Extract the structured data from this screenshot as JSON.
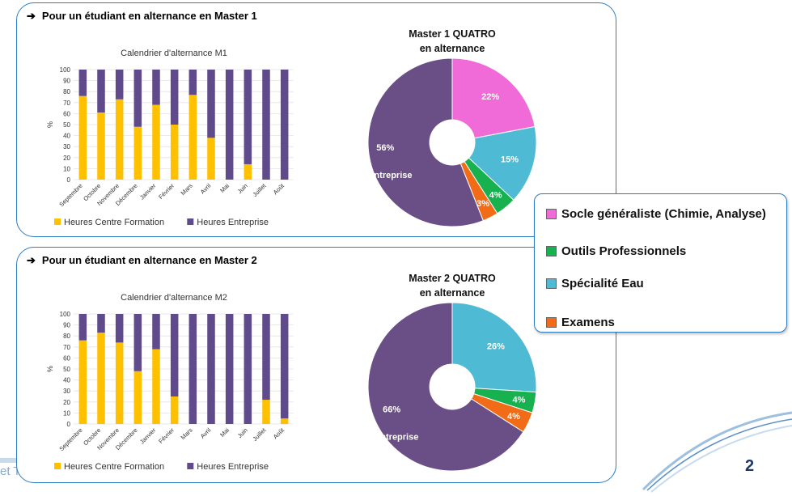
{
  "footer_text": "et Tra",
  "page_number": "2",
  "legend": {
    "items": [
      {
        "label": "Socle généraliste (Chimie, Analyse)",
        "color": "#f06ad8"
      },
      {
        "label": "Outils Professionnels",
        "color": "#17b14f"
      },
      {
        "label": "Spécialité Eau",
        "color": "#4ebad3"
      },
      {
        "label": "Examens",
        "color": "#f26b16"
      }
    ]
  },
  "section1": {
    "heading": "Pour un étudiant en alternance en Master 1",
    "bar_chart": {
      "type": "bar",
      "stacked": true,
      "title": "Calendrier d'alternance M1",
      "ylabel": "%",
      "ylim": [
        0,
        100
      ],
      "yticks": [
        0,
        10,
        20,
        30,
        40,
        50,
        60,
        70,
        80,
        90,
        100
      ],
      "categories": [
        "Septembre",
        "Octobre",
        "Novembre",
        "Décembre",
        "Janvier",
        "Février",
        "Mars",
        "Avril",
        "Mai",
        "Juin",
        "Juillet",
        "Août"
      ],
      "series": [
        {
          "name": "Heures Centre Formation",
          "color": "#ffc000",
          "values": [
            76,
            61,
            73,
            48,
            68,
            50,
            77,
            38,
            0,
            14,
            0,
            0
          ]
        },
        {
          "name": "Heures Entreprise",
          "color": "#5f4b8b",
          "values": [
            24,
            39,
            27,
            52,
            32,
            50,
            23,
            62,
            100,
            86,
            100,
            100
          ]
        }
      ]
    },
    "pie_chart": {
      "type": "pie",
      "title_line1": "Master 1 QUATRO",
      "title_line2": "en alternance",
      "slices": [
        {
          "name": "Socle généraliste",
          "value": 22,
          "label": "22%",
          "color": "#f06ad8"
        },
        {
          "name": "Spécialité Eau",
          "value": 15,
          "label": "15%",
          "color": "#4ebad3"
        },
        {
          "name": "Outils Professionnels",
          "value": 4,
          "label": "4%",
          "color": "#17b14f"
        },
        {
          "name": "Examens",
          "value": 3,
          "label": "3%",
          "color": "#f26b16"
        },
        {
          "name": "Entreprise",
          "value": 56,
          "label": "56%",
          "extra_label": "Entreprise",
          "color": "#6a4f87"
        }
      ]
    }
  },
  "section2": {
    "heading": "Pour un étudiant en alternance en Master 2",
    "bar_chart": {
      "type": "bar",
      "stacked": true,
      "title": "Calendrier d'alternance M2",
      "ylabel": "%",
      "ylim": [
        0,
        100
      ],
      "yticks": [
        0,
        10,
        20,
        30,
        40,
        50,
        60,
        70,
        80,
        90,
        100
      ],
      "categories": [
        "Septembre",
        "Octobre",
        "Novembre",
        "Décembre",
        "Janvier",
        "Février",
        "Mars",
        "Avril",
        "Mai",
        "Juin",
        "Juillet",
        "Août"
      ],
      "series": [
        {
          "name": "Heures Centre Formation",
          "color": "#ffc000",
          "values": [
            76,
            83,
            74,
            48,
            68,
            25,
            0,
            0,
            0,
            0,
            22,
            5
          ]
        },
        {
          "name": "Heures Entreprise",
          "color": "#5f4b8b",
          "values": [
            24,
            17,
            26,
            52,
            32,
            75,
            100,
            100,
            100,
            100,
            78,
            95
          ]
        }
      ]
    },
    "pie_chart": {
      "type": "pie",
      "title_line1": "Master 2 QUATRO",
      "title_line2": "en alternance",
      "slices": [
        {
          "name": "Spécialité Eau",
          "value": 26,
          "label": "26%",
          "color": "#4ebad3"
        },
        {
          "name": "Outils Professionnels",
          "value": 4,
          "label": "4%",
          "color": "#17b14f"
        },
        {
          "name": "Examens",
          "value": 4,
          "label": "4%",
          "color": "#f26b16"
        },
        {
          "name": "Entreprise",
          "value": 66,
          "label": "66%",
          "extra_label": "Entreprise",
          "color": "#6a4f87"
        }
      ]
    }
  },
  "chart_data": [
    {
      "type": "bar",
      "title": "Calendrier d'alternance M1",
      "ylabel": "%",
      "ylim": [
        0,
        100
      ],
      "categories": [
        "Septembre",
        "Octobre",
        "Novembre",
        "Décembre",
        "Janvier",
        "Février",
        "Mars",
        "Avril",
        "Mai",
        "Juin",
        "Juillet",
        "Août"
      ],
      "series": [
        {
          "name": "Heures Centre Formation",
          "values": [
            76,
            61,
            73,
            48,
            68,
            50,
            77,
            38,
            0,
            14,
            0,
            0
          ]
        },
        {
          "name": "Heures Entreprise",
          "values": [
            24,
            39,
            27,
            52,
            32,
            50,
            23,
            62,
            100,
            86,
            100,
            100
          ]
        }
      ]
    },
    {
      "type": "pie",
      "title": "Master 1 QUATRO en alternance",
      "categories": [
        "Socle généraliste",
        "Spécialité Eau",
        "Outils Professionnels",
        "Examens",
        "Entreprise"
      ],
      "values": [
        22,
        15,
        4,
        3,
        56
      ]
    },
    {
      "type": "bar",
      "title": "Calendrier d'alternance M2",
      "ylabel": "%",
      "ylim": [
        0,
        100
      ],
      "categories": [
        "Septembre",
        "Octobre",
        "Novembre",
        "Décembre",
        "Janvier",
        "Février",
        "Mars",
        "Avril",
        "Mai",
        "Juin",
        "Juillet",
        "Août"
      ],
      "series": [
        {
          "name": "Heures Centre Formation",
          "values": [
            76,
            83,
            74,
            48,
            68,
            25,
            0,
            0,
            0,
            0,
            22,
            5
          ]
        },
        {
          "name": "Heures Entreprise",
          "values": [
            24,
            17,
            26,
            52,
            32,
            75,
            100,
            100,
            100,
            100,
            78,
            95
          ]
        }
      ]
    },
    {
      "type": "pie",
      "title": "Master 2 QUATRO en alternance",
      "categories": [
        "Spécialité Eau",
        "Outils Professionnels",
        "Examens",
        "Entreprise"
      ],
      "values": [
        26,
        4,
        4,
        66
      ]
    }
  ]
}
